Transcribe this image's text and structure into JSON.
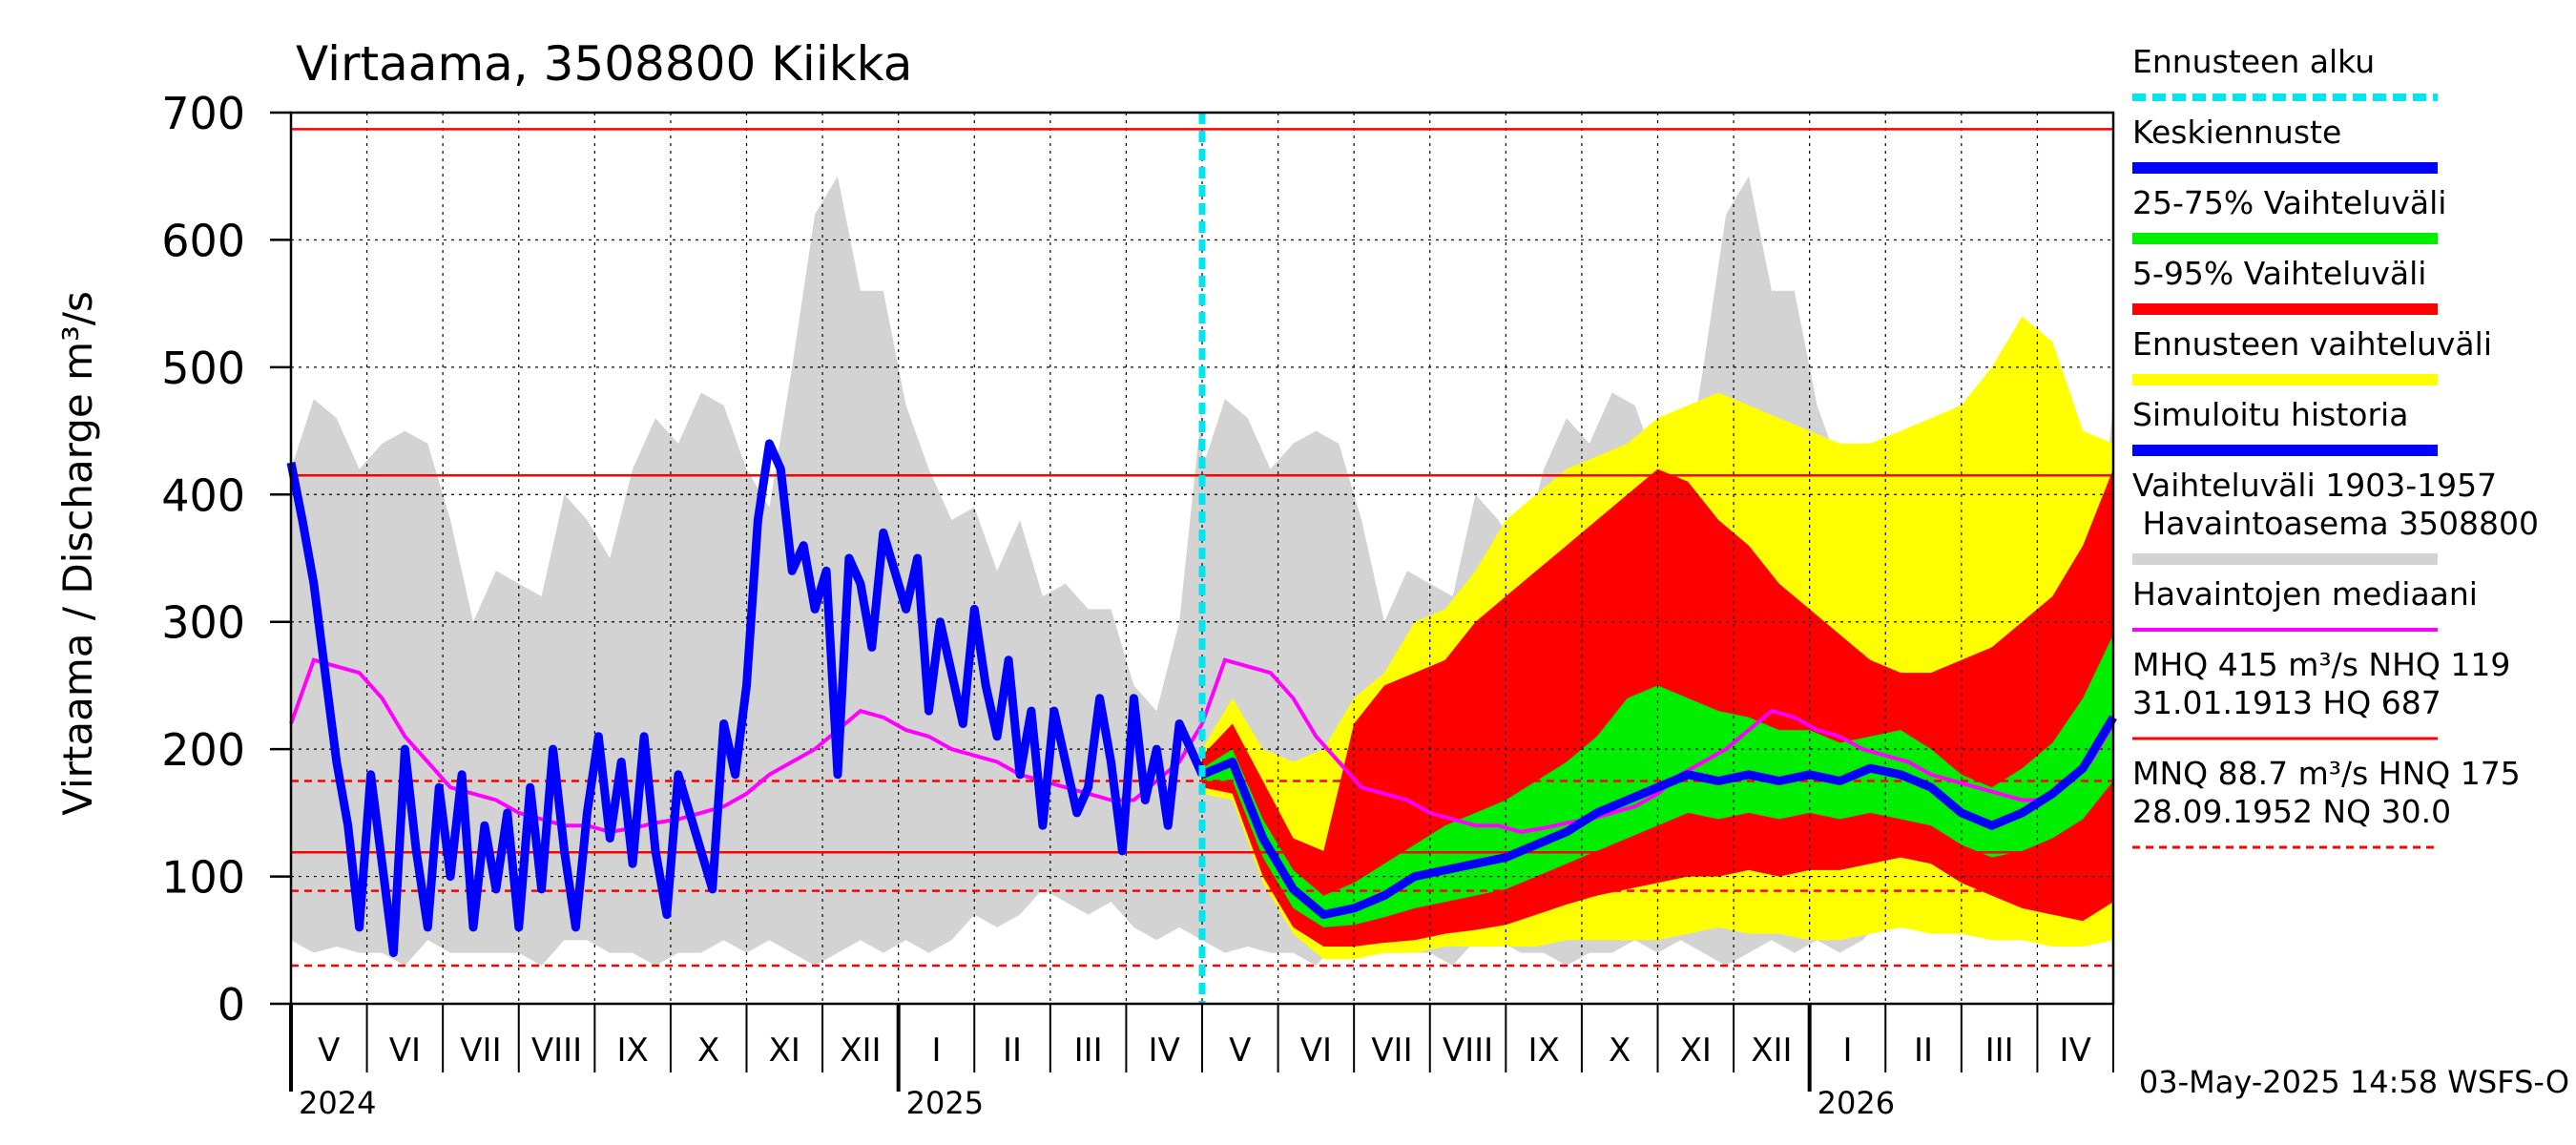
{
  "chart_data": {
    "type": "area",
    "title": "Virtaama, 3508800 Kiikka",
    "ylabel": "Virtaama / Discharge   m³/s",
    "ylim": [
      0,
      700
    ],
    "yticks": [
      0,
      100,
      200,
      300,
      400,
      500,
      600,
      700
    ],
    "grid": true,
    "legend_position": "right",
    "timestamp": "03-May-2025 14:58 WSFS-O",
    "x_axis": {
      "months": [
        "V",
        "VI",
        "VII",
        "VIII",
        "IX",
        "X",
        "XI",
        "XII",
        "I",
        "II",
        "III",
        "IV",
        "V",
        "VI",
        "VII",
        "VIII",
        "IX",
        "X",
        "XI",
        "XII",
        "I",
        "II",
        "III",
        "IV"
      ],
      "years": [
        {
          "label": "2024",
          "month_index": 0
        },
        {
          "label": "2025",
          "month_index": 8
        },
        {
          "label": "2026",
          "month_index": 20
        }
      ]
    },
    "forecast_start_month": 12,
    "legend": [
      {
        "label": "Ennusteen alku",
        "color": "#00e5ee",
        "style": "dotted"
      },
      {
        "label": "Keskiennuste",
        "color": "#0000ff",
        "style": "solid"
      },
      {
        "label": "25-75% Vaihteluväli",
        "color": "#00ee00",
        "style": "solid"
      },
      {
        "label": "5-95% Vaihteluväli",
        "color": "#ff0000",
        "style": "solid"
      },
      {
        "label": "Ennusteen vaihteluväli",
        "color": "#ffff00",
        "style": "solid"
      },
      {
        "label": "Simuloitu historia",
        "color": "#0000ff",
        "style": "solid"
      },
      {
        "label": "Vaihteluväli 1903-1957\n Havaintoasema 3508800",
        "color": "#d3d3d3",
        "style": "solid"
      },
      {
        "label": "Havaintojen mediaani",
        "color": "#ff00ff",
        "style": "solid"
      },
      {
        "label": "MHQ  415 m³/s NHQ  119\n31.01.1913 HQ  687",
        "color": "#ff0000",
        "style": "solid"
      },
      {
        "label": "MNQ 88.7 m³/s HNQ  175\n28.09.1952 NQ 30.0",
        "color": "#ff0000",
        "style": "dashed"
      }
    ],
    "reference_lines": [
      {
        "name": "HQ",
        "value": 687,
        "style": "solid"
      },
      {
        "name": "MHQ",
        "value": 415,
        "style": "solid"
      },
      {
        "name": "NHQ",
        "value": 119,
        "style": "solid"
      },
      {
        "name": "HNQ",
        "value": 175,
        "style": "dashed"
      },
      {
        "name": "MNQ",
        "value": 88.7,
        "style": "dashed"
      },
      {
        "name": "NQ",
        "value": 30.0,
        "style": "dashed"
      }
    ],
    "historical_band": {
      "name": "Vaihteluväli 1903-1957",
      "x": [
        0,
        0.3,
        0.6,
        0.9,
        1.2,
        1.5,
        1.8,
        2.1,
        2.4,
        2.7,
        3.0,
        3.3,
        3.6,
        3.9,
        4.2,
        4.5,
        4.8,
        5.1,
        5.4,
        5.7,
        6.0,
        6.3,
        6.6,
        6.9,
        7.2,
        7.5,
        7.8,
        8.1,
        8.4,
        8.7,
        9.0,
        9.3,
        9.6,
        9.9,
        10.2,
        10.5,
        10.8,
        11.1,
        11.4,
        11.7,
        12.0
      ],
      "upper": [
        420,
        475,
        460,
        420,
        440,
        450,
        440,
        380,
        300,
        340,
        330,
        320,
        400,
        380,
        350,
        420,
        460,
        440,
        480,
        470,
        420,
        390,
        500,
        620,
        650,
        560,
        560,
        470,
        420,
        380,
        390,
        340,
        380,
        320,
        330,
        310,
        310,
        250,
        230,
        300,
        470
      ],
      "lower": [
        50,
        40,
        45,
        40,
        40,
        30,
        50,
        40,
        40,
        40,
        40,
        30,
        50,
        50,
        40,
        40,
        30,
        40,
        40,
        50,
        40,
        50,
        40,
        30,
        40,
        50,
        40,
        50,
        40,
        50,
        70,
        60,
        70,
        90,
        80,
        70,
        80,
        60,
        50,
        60,
        50
      ]
    },
    "median": {
      "name": "Havaintojen mediaani",
      "x": [
        0,
        0.3,
        0.6,
        0.9,
        1.2,
        1.5,
        1.8,
        2.1,
        2.4,
        2.7,
        3.0,
        3.3,
        3.6,
        3.9,
        4.2,
        4.5,
        4.8,
        5.1,
        5.4,
        5.7,
        6.0,
        6.3,
        6.6,
        6.9,
        7.2,
        7.5,
        7.8,
        8.1,
        8.4,
        8.7,
        9.0,
        9.3,
        9.6,
        9.9,
        10.2,
        10.5,
        10.8,
        11.1,
        11.4,
        11.7,
        12.0
      ],
      "values": [
        220,
        270,
        265,
        260,
        240,
        210,
        190,
        170,
        165,
        160,
        150,
        145,
        140,
        140,
        135,
        138,
        142,
        145,
        150,
        155,
        165,
        180,
        190,
        200,
        215,
        230,
        225,
        215,
        210,
        200,
        195,
        190,
        180,
        175,
        170,
        165,
        160,
        160,
        175,
        190,
        220
      ]
    },
    "simulated_history": {
      "name": "Simuloitu historia",
      "x": [
        0,
        0.15,
        0.3,
        0.45,
        0.6,
        0.75,
        0.9,
        1.05,
        1.2,
        1.35,
        1.5,
        1.65,
        1.8,
        1.95,
        2.1,
        2.25,
        2.4,
        2.55,
        2.7,
        2.85,
        3.0,
        3.15,
        3.3,
        3.45,
        3.6,
        3.75,
        3.9,
        4.05,
        4.2,
        4.35,
        4.5,
        4.65,
        4.8,
        4.95,
        5.1,
        5.25,
        5.4,
        5.55,
        5.7,
        5.85,
        6.0,
        6.15,
        6.3,
        6.45,
        6.6,
        6.75,
        6.9,
        7.05,
        7.2,
        7.35,
        7.5,
        7.65,
        7.8,
        7.95,
        8.1,
        8.25,
        8.4,
        8.55,
        8.7,
        8.85,
        9.0,
        9.15,
        9.3,
        9.45,
        9.6,
        9.75,
        9.9,
        10.05,
        10.2,
        10.35,
        10.5,
        10.65,
        10.8,
        10.95,
        11.1,
        11.25,
        11.4,
        11.55,
        11.7,
        11.85,
        12.0
      ],
      "values": [
        425,
        380,
        330,
        260,
        190,
        140,
        60,
        180,
        110,
        40,
        200,
        120,
        60,
        170,
        100,
        180,
        60,
        140,
        90,
        150,
        60,
        170,
        90,
        200,
        120,
        60,
        150,
        210,
        130,
        190,
        110,
        210,
        120,
        70,
        180,
        150,
        120,
        90,
        220,
        180,
        250,
        380,
        440,
        420,
        340,
        360,
        310,
        340,
        180,
        350,
        330,
        280,
        370,
        340,
        310,
        350,
        230,
        300,
        260,
        220,
        310,
        250,
        210,
        270,
        180,
        230,
        140,
        230,
        190,
        150,
        170,
        240,
        190,
        120,
        240,
        160,
        200,
        140,
        220,
        200,
        180
      ]
    },
    "forecast": {
      "x": [
        12.0,
        12.4,
        12.8,
        13.2,
        13.6,
        14.0,
        14.4,
        14.8,
        15.2,
        15.6,
        16.0,
        16.4,
        16.8,
        17.2,
        17.6,
        18.0,
        18.4,
        18.8,
        19.2,
        19.6,
        20.0,
        20.4,
        20.8,
        21.2,
        21.6,
        22.0,
        22.4,
        22.8,
        23.2,
        23.6,
        24.0
      ],
      "mean": [
        180,
        190,
        130,
        90,
        70,
        75,
        85,
        100,
        105,
        110,
        115,
        125,
        135,
        150,
        160,
        170,
        180,
        175,
        180,
        175,
        180,
        175,
        185,
        180,
        170,
        150,
        140,
        150,
        165,
        185,
        225
      ],
      "p25": [
        175,
        175,
        115,
        75,
        60,
        62,
        68,
        75,
        80,
        85,
        90,
        100,
        110,
        120,
        130,
        140,
        150,
        145,
        150,
        145,
        150,
        145,
        150,
        145,
        140,
        125,
        115,
        120,
        130,
        145,
        175
      ],
      "p75": [
        185,
        200,
        145,
        105,
        85,
        95,
        110,
        125,
        140,
        150,
        160,
        175,
        190,
        210,
        240,
        250,
        240,
        230,
        225,
        215,
        215,
        205,
        210,
        215,
        200,
        180,
        170,
        185,
        205,
        240,
        290
      ],
      "p5": [
        170,
        165,
        100,
        60,
        45,
        45,
        48,
        50,
        55,
        58,
        62,
        70,
        78,
        85,
        90,
        95,
        100,
        100,
        105,
        100,
        105,
        105,
        110,
        115,
        110,
        95,
        85,
        75,
        70,
        65,
        80
      ],
      "p95": [
        195,
        220,
        175,
        130,
        120,
        220,
        250,
        260,
        270,
        300,
        320,
        340,
        360,
        380,
        400,
        420,
        410,
        380,
        360,
        330,
        310,
        290,
        270,
        260,
        260,
        270,
        280,
        300,
        320,
        360,
        420
      ],
      "min": [
        165,
        160,
        95,
        55,
        35,
        35,
        40,
        40,
        45,
        45,
        45,
        45,
        50,
        50,
        50,
        50,
        55,
        60,
        55,
        55,
        50,
        50,
        55,
        60,
        55,
        55,
        50,
        50,
        45,
        45,
        50
      ],
      "max": [
        200,
        240,
        200,
        190,
        200,
        240,
        260,
        300,
        310,
        340,
        380,
        400,
        420,
        430,
        440,
        460,
        470,
        480,
        470,
        460,
        450,
        440,
        440,
        450,
        460,
        470,
        500,
        540,
        520,
        450,
        440
      ]
    }
  }
}
